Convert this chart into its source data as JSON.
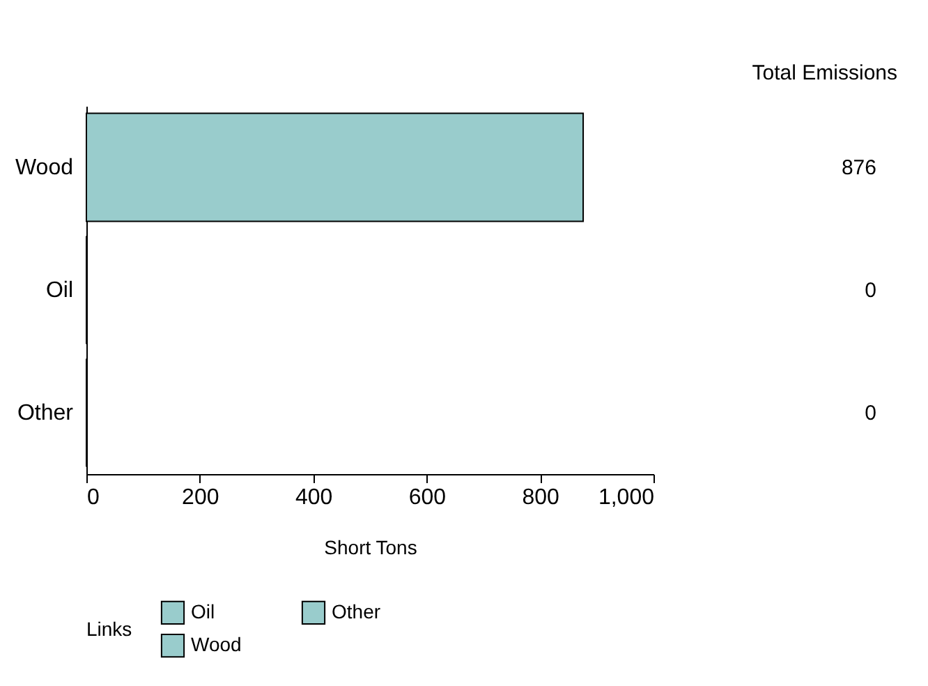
{
  "chart_data": {
    "type": "bar",
    "orientation": "horizontal",
    "categories": [
      "Wood",
      "Oil",
      "Other"
    ],
    "series": [
      {
        "name": "Oil",
        "color": "#99cccc",
        "values": [
          null,
          0,
          null
        ]
      },
      {
        "name": "Other",
        "color": "#99cccc",
        "values": [
          null,
          null,
          0
        ]
      },
      {
        "name": "Wood",
        "color": "#99cccc",
        "values": [
          876,
          null,
          null
        ]
      }
    ],
    "xlabel": "Short Tons",
    "xlim": [
      0,
      1000
    ],
    "xticks": [
      0,
      200,
      400,
      600,
      800,
      {
        "value": 1000,
        "label": "1,000"
      }
    ],
    "annotations": [
      "Total Emissions",
      "876",
      "0",
      "0"
    ],
    "legend": "bottom",
    "legend_title": "Links"
  }
}
